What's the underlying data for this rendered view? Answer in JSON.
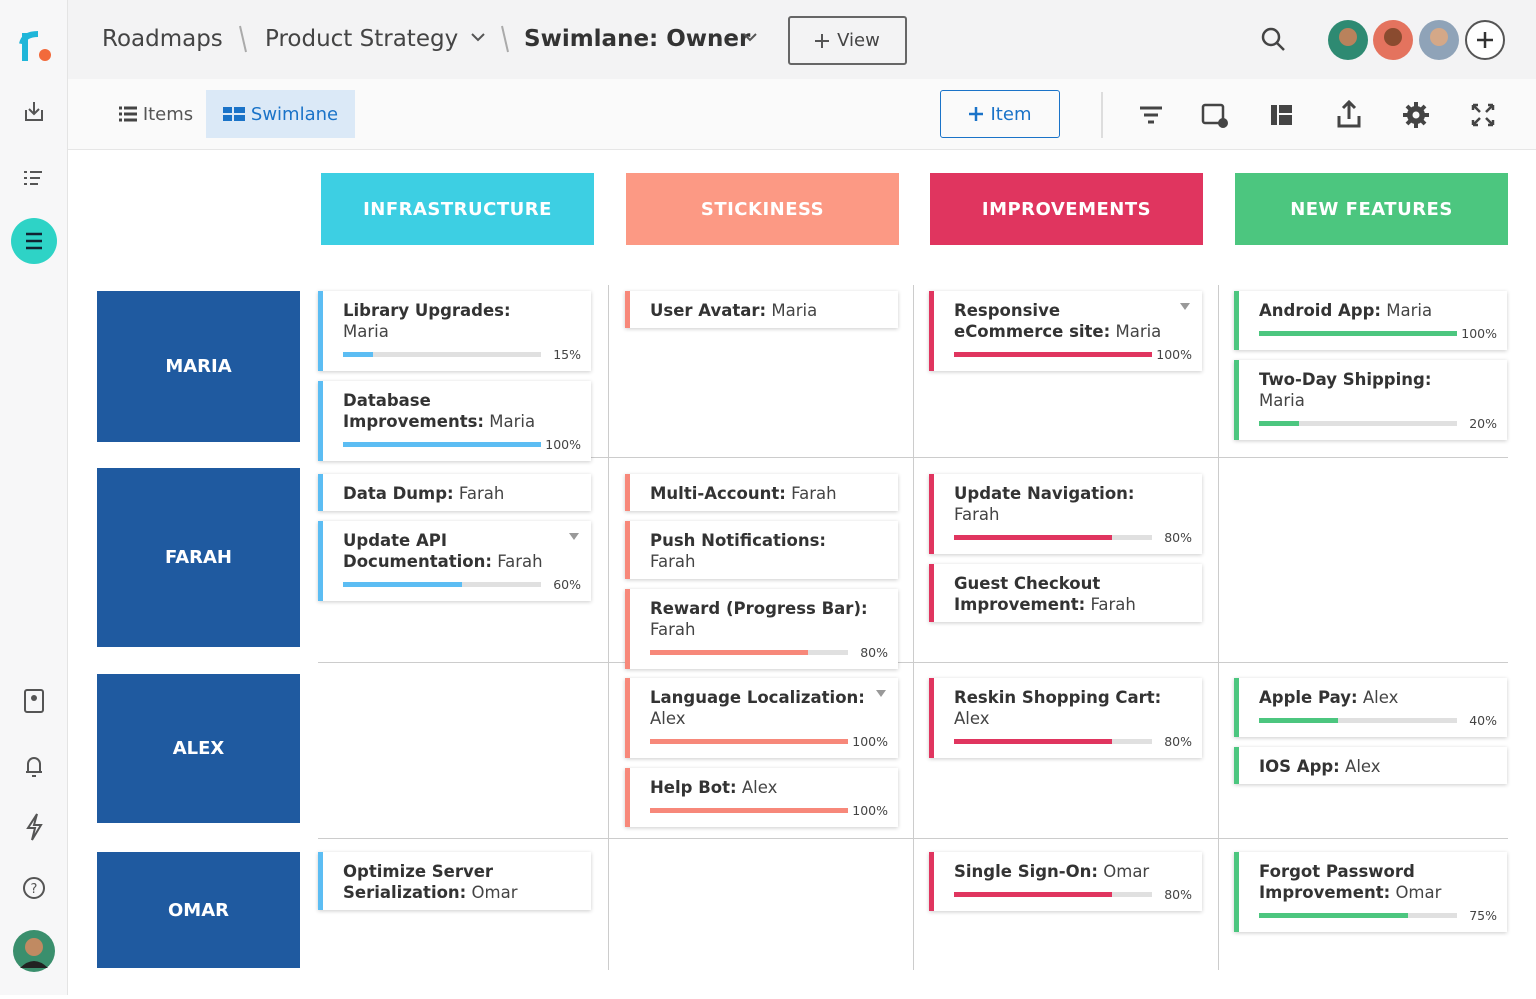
{
  "header": {
    "breadcrumbs": [
      "Roadmaps",
      "Product Strategy",
      "Swimlane: Owner"
    ],
    "view_button": "View"
  },
  "toolbar": {
    "tabs": [
      "Items",
      "Swimlane"
    ],
    "active_tab": 1,
    "item_button": "Item"
  },
  "lanes": [
    {
      "name": "INFRASTRUCTURE",
      "color": "#3dcfe3",
      "accent": "#5cbdf3"
    },
    {
      "name": "STICKINESS",
      "color": "#fc9984",
      "accent": "#f7887a"
    },
    {
      "name": "IMPROVEMENTS",
      "color": "#e0355f",
      "accent": "#e0355f"
    },
    {
      "name": "NEW FEATURES",
      "color": "#4cc67f",
      "accent": "#4cc67f"
    }
  ],
  "owner_color": "#1f5aa0",
  "rows": [
    {
      "owner": "MARIA",
      "cells": [
        [
          {
            "title": "Library Upgrades:",
            "owner": "Maria",
            "progress": {
              "value": 15,
              "label": "15%"
            }
          },
          {
            "title": "Database Improvements:",
            "owner": "Maria",
            "progress": {
              "value": 100,
              "label": "100%"
            }
          }
        ],
        [
          {
            "title": "User Avatar:",
            "owner": "Maria"
          }
        ],
        [
          {
            "title": "Responsive eCommerce site:",
            "owner": "Maria",
            "expandable": true,
            "progress": {
              "value": 100,
              "label": "100%"
            }
          }
        ],
        [
          {
            "title": "Android App:",
            "owner": "Maria",
            "progress": {
              "value": 100,
              "label": "100%"
            }
          },
          {
            "title": "Two-Day Shipping:",
            "owner": "Maria",
            "progress": {
              "value": 20,
              "label": "20%"
            }
          }
        ]
      ]
    },
    {
      "owner": "FARAH",
      "cells": [
        [
          {
            "title": "Data Dump:",
            "owner": "Farah"
          },
          {
            "title": "Update API Documentation:",
            "owner": "Farah",
            "expandable": true,
            "progress": {
              "value": 60,
              "label": "60%"
            }
          }
        ],
        [
          {
            "title": "Multi-Account:",
            "owner": "Farah"
          },
          {
            "title": "Push Notifications:",
            "owner": "Farah"
          },
          {
            "title": "Reward (Progress Bar):",
            "owner": "Farah",
            "progress": {
              "value": 80,
              "label": "80%"
            }
          }
        ],
        [
          {
            "title": "Update Navigation:",
            "owner": "Farah",
            "progress": {
              "value": 80,
              "label": "80%"
            }
          },
          {
            "title": "Guest Checkout Improvement:",
            "owner": "Farah"
          }
        ],
        []
      ]
    },
    {
      "owner": "ALEX",
      "cells": [
        [],
        [
          {
            "title": "Language Localization:",
            "owner": "Alex",
            "expandable": true,
            "progress": {
              "value": 100,
              "label": "100%"
            }
          },
          {
            "title": "Help Bot:",
            "owner": "Alex",
            "progress": {
              "value": 100,
              "label": "100%"
            }
          }
        ],
        [
          {
            "title": "Reskin Shopping Cart:",
            "owner": "Alex",
            "progress": {
              "value": 80,
              "label": "80%"
            }
          }
        ],
        [
          {
            "title": "Apple Pay:",
            "owner": "Alex",
            "progress": {
              "value": 40,
              "label": "40%"
            }
          },
          {
            "title": "IOS App:",
            "owner": "Alex"
          }
        ]
      ]
    },
    {
      "owner": "OMAR",
      "cells": [
        [
          {
            "title": "Optimize Server Serialization:",
            "owner": "Omar"
          }
        ],
        [],
        [
          {
            "title": "Single Sign-On:",
            "owner": "Omar",
            "progress": {
              "value": 80,
              "label": "80%"
            }
          }
        ],
        [
          {
            "title": "Forgot Password Improvement:",
            "owner": "Omar",
            "progress": {
              "value": 75,
              "label": "75%"
            }
          }
        ]
      ]
    }
  ]
}
